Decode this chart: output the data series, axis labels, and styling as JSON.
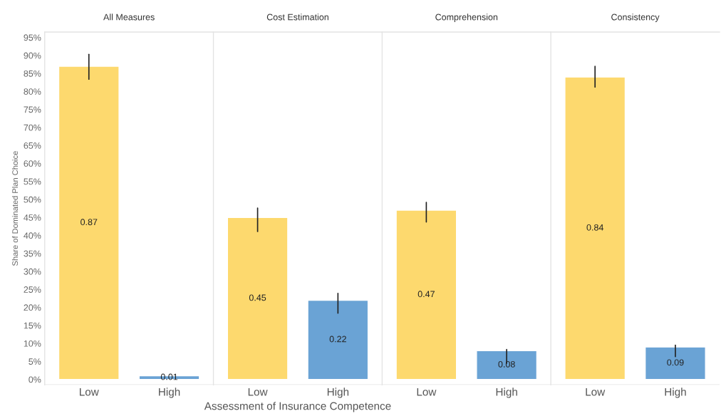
{
  "chart_data": [
    {
      "type": "bar",
      "title": "All Measures",
      "ylabel": "Share of Dominated Plan Choice",
      "categories": [
        "Low",
        "High"
      ],
      "values": [
        0.87,
        0.01
      ],
      "colors": [
        "#fdd96e",
        "#6aa3d5"
      ],
      "errors": [
        [
          0.834,
          0.903
        ],
        null
      ],
      "data_labels": true,
      "ylim": [
        -0.015,
        0.965
      ],
      "yticks": [
        {
          "value": 0,
          "label": "0%"
        },
        {
          "value": 0.05,
          "label": "5%"
        },
        {
          "value": 0.1,
          "label": "10%"
        },
        {
          "value": 0.15,
          "label": "15%"
        },
        {
          "value": 0.2,
          "label": "20%"
        },
        {
          "value": 0.25,
          "label": "25%"
        },
        {
          "value": 0.3,
          "label": "30%"
        },
        {
          "value": 0.35,
          "label": "35%"
        },
        {
          "value": 0.4,
          "label": "40%"
        },
        {
          "value": 0.45,
          "label": "45%"
        },
        {
          "value": 0.5,
          "label": "50%"
        },
        {
          "value": 0.55,
          "label": "55%"
        },
        {
          "value": 0.6,
          "label": "60%"
        },
        {
          "value": 0.65,
          "label": "65%"
        },
        {
          "value": 0.7,
          "label": "70%"
        },
        {
          "value": 0.75,
          "label": "75%"
        },
        {
          "value": 0.8,
          "label": "80%"
        },
        {
          "value": 0.85,
          "label": "85%"
        },
        {
          "value": 0.9,
          "label": "90%"
        },
        {
          "value": 0.95,
          "label": "95%"
        }
      ],
      "grid": false
    },
    {
      "type": "bar",
      "title": "Cost Estimation",
      "xlabel": "Assessment of Insurance Competence",
      "categories": [
        "Low",
        "High"
      ],
      "values": [
        0.45,
        0.22
      ],
      "colors": [
        "#fdd96e",
        "#6aa3d5"
      ],
      "errors": [
        [
          0.411,
          0.476
        ],
        [
          0.184,
          0.239
        ]
      ],
      "data_labels": true,
      "ylim": [
        -0.015,
        0.965
      ],
      "tick_labels": "x",
      "grid": false
    },
    {
      "type": "bar",
      "title": "Comprehension",
      "categories": [
        "Low",
        "High"
      ],
      "values": [
        0.47,
        0.08
      ],
      "colors": [
        "#fdd96e",
        "#6aa3d5"
      ],
      "errors": [
        [
          0.437,
          0.492
        ],
        [
          0.045,
          0.083
        ]
      ],
      "data_labels": true,
      "ylim": [
        -0.015,
        0.965
      ],
      "tick_labels": "x",
      "grid": false
    },
    {
      "type": "bar",
      "title": "Consistency",
      "categories": [
        "Low",
        "High"
      ],
      "values": [
        0.84,
        0.09
      ],
      "colors": [
        "#fdd96e",
        "#6aa3d5"
      ],
      "errors": [
        [
          0.812,
          0.87
        ],
        [
          0.063,
          0.095
        ]
      ],
      "data_labels": true,
      "ylim": [
        -0.015,
        0.965
      ],
      "tick_labels": "x",
      "grid": false
    }
  ]
}
